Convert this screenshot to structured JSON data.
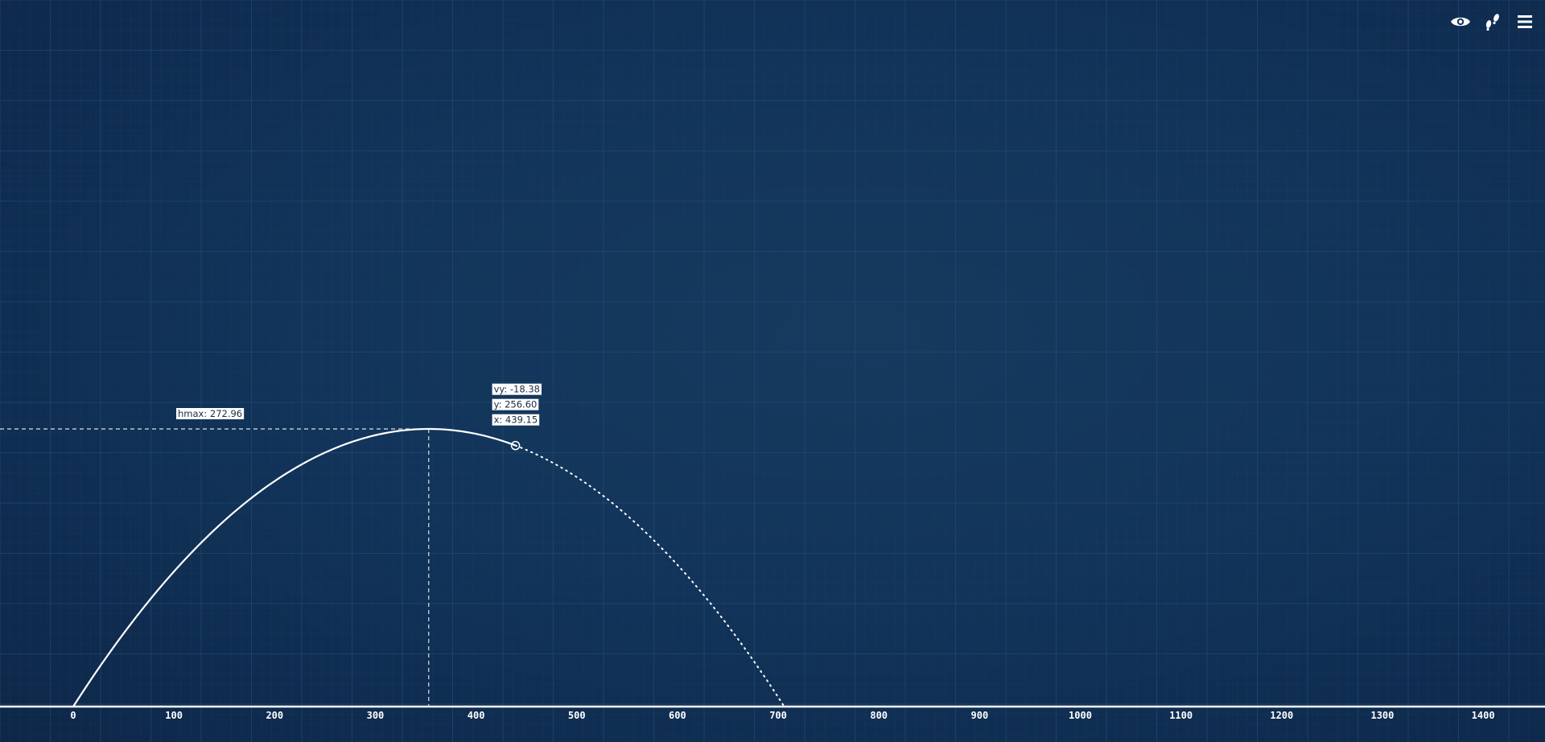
{
  "toolbar": {
    "items": [
      {
        "icon": "eye-icon"
      },
      {
        "icon": "footsteps-icon"
      },
      {
        "icon": "hamburger-menu-icon"
      }
    ]
  },
  "colors": {
    "background": "#12345a",
    "grid_minor": "#1d4670",
    "grid_major": "#24517d",
    "trajectory": "#ffffff",
    "label_bg": "#ffffff",
    "label_text": "#1a2b40"
  },
  "chart_data": {
    "type": "line",
    "x_ticks": [
      0,
      100,
      200,
      300,
      400,
      500,
      600,
      700,
      800,
      900,
      1000,
      1100,
      1200,
      1300,
      1400
    ],
    "x_tick_labels": [
      "0",
      "100",
      "200",
      "300",
      "400",
      "500",
      "600",
      "700",
      "800",
      "900",
      "1000",
      "1100",
      "1200",
      "1300",
      "1400"
    ],
    "trajectory": {
      "range_x": 706,
      "apex_x": 353,
      "hmax": 272.96,
      "current": {
        "x": 439.15,
        "y": 256.6,
        "vy": -18.38
      },
      "traveled_style": "solid",
      "predicted_style": "dotted"
    },
    "labels": {
      "hmax": "hmax: 272.96",
      "vy": "vy: -18.38",
      "y": "y: 256.60",
      "x": "x: 439.15"
    },
    "grid": true
  }
}
